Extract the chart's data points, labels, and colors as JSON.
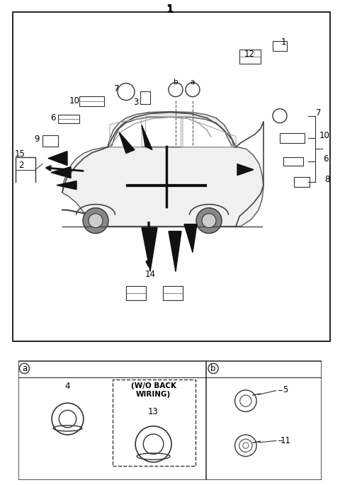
{
  "title": "1",
  "bg_color": "#ffffff",
  "border_color": "#000000",
  "fig_width": 4.8,
  "fig_height": 6.85,
  "dpi": 100,
  "labels": {
    "top_center": "1",
    "label_1_right": "1",
    "label_12": "12",
    "label_7_right": "7",
    "label_10_right": "10",
    "label_6_right": "6",
    "label_8": "8",
    "label_9": "9",
    "label_6_left": "6",
    "label_10_left": "10",
    "label_7_left": "7",
    "label_3": "3",
    "label_b_circle": "b",
    "label_a_circle": "a",
    "label_15": "15",
    "label_2": "2",
    "label_14": "14",
    "label_a_box": "a",
    "label_b_box": "b",
    "label_4": "4",
    "label_13": "13",
    "label_wiring": "(W/O BACK\nWIRING)",
    "label_5": "5",
    "label_11": "11"
  },
  "car_color": "#e8e8e8",
  "line_color": "#000000",
  "connector_color": "#333333"
}
